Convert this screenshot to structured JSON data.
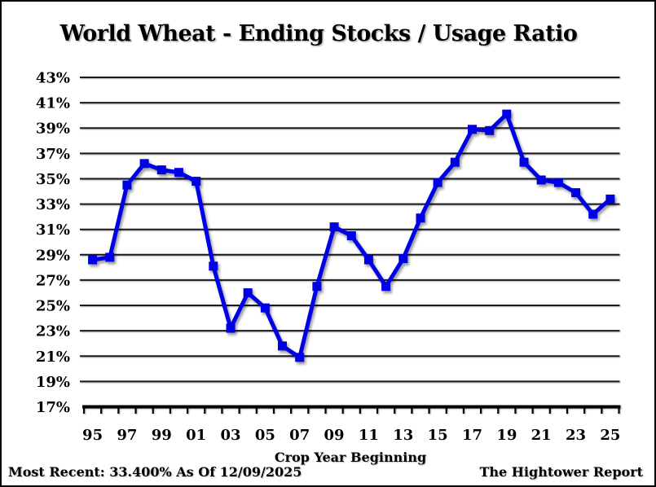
{
  "title": "World Wheat - Ending Stocks / Usage Ratio",
  "footer": {
    "most_recent": "Most Recent: 33.400% As Of 12/09/2025",
    "source": "The Hightower Report"
  },
  "chart_data": {
    "type": "line",
    "title": "World Wheat - Ending Stocks / Usage Ratio",
    "xlabel": "Crop Year Beginning",
    "ylabel": "",
    "ylim": [
      17,
      43
    ],
    "y_tick_step": 2,
    "y_tick_labels": [
      "43%",
      "41%",
      "39%",
      "37%",
      "35%",
      "33%",
      "31%",
      "29%",
      "27%",
      "25%",
      "23%",
      "21%",
      "19%",
      "17%"
    ],
    "categories": [
      "95",
      "96",
      "97",
      "98",
      "99",
      "00",
      "01",
      "02",
      "03",
      "04",
      "05",
      "06",
      "07",
      "08",
      "09",
      "10",
      "11",
      "12",
      "13",
      "14",
      "15",
      "16",
      "17",
      "18",
      "19",
      "20",
      "21",
      "22",
      "23",
      "24",
      "25"
    ],
    "x_tick_labels": [
      "95",
      "97",
      "99",
      "01",
      "03",
      "05",
      "07",
      "09",
      "11",
      "13",
      "15",
      "17",
      "19",
      "21",
      "23",
      "25"
    ],
    "values": [
      28.6,
      28.8,
      34.5,
      36.2,
      35.7,
      35.5,
      34.8,
      28.1,
      23.2,
      26.0,
      24.8,
      21.8,
      20.9,
      26.5,
      31.2,
      30.5,
      28.6,
      26.5,
      28.7,
      31.9,
      34.7,
      36.3,
      38.9,
      38.8,
      40.1,
      36.3,
      34.9,
      34.7,
      33.9,
      32.2,
      33.4
    ],
    "line_color": "#0000E6",
    "grid": true,
    "legend": false,
    "marker": "square"
  }
}
